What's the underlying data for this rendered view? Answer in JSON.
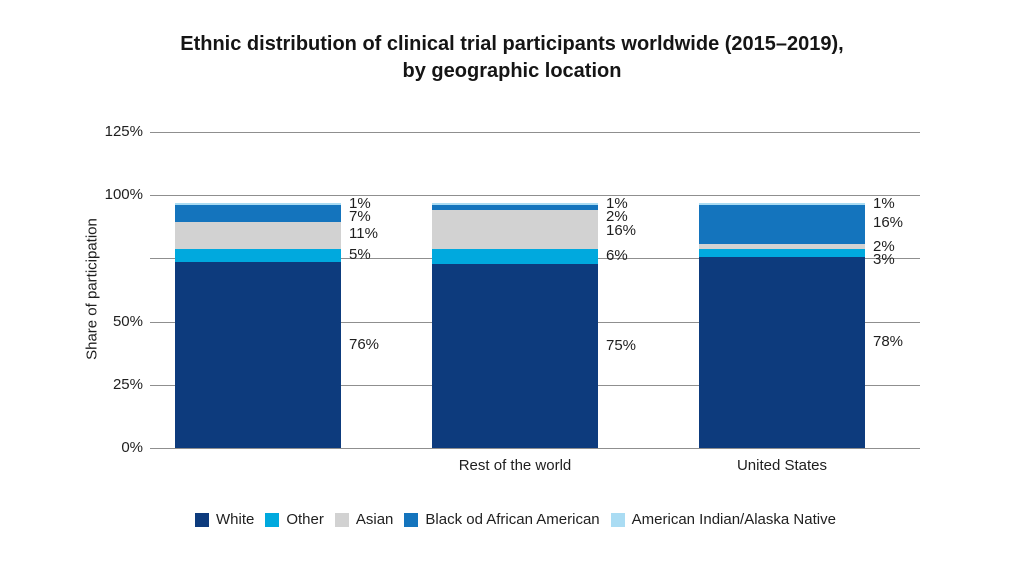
{
  "title": {
    "line1": "Ethnic distribution of clinical trial participants worldwide (2015–2019),",
    "line2": "by geographic location"
  },
  "chart_data": {
    "type": "bar",
    "stacked": true,
    "title": "Ethnic distribution of clinical trial participants worldwide (2015–2019), by geographic location",
    "xlabel": "",
    "ylabel": "Share of participation",
    "ylim": [
      0,
      125
    ],
    "grid": true,
    "legend_position": "bottom",
    "value_suffix": "%",
    "categories": [
      "",
      "Rest of the world",
      "United States"
    ],
    "y_ticks": [
      {
        "value": 0,
        "label": "0%"
      },
      {
        "value": 25,
        "label": "25%"
      },
      {
        "value": 50,
        "label": "50%"
      },
      {
        "value": 75,
        "label": ""
      },
      {
        "value": 100,
        "label": "100%"
      },
      {
        "value": 125,
        "label": "125%"
      }
    ],
    "series": [
      {
        "name": "White",
        "color": "#0d3b7d",
        "values": [
          76,
          75,
          78
        ]
      },
      {
        "name": "Other",
        "color": "#00a9de",
        "values": [
          5,
          6,
          3
        ]
      },
      {
        "name": "Asian",
        "color": "#d2d2d2",
        "values": [
          11,
          16,
          2
        ]
      },
      {
        "name": "Black od African American",
        "color": "#1474bd",
        "values": [
          7,
          2,
          16
        ]
      },
      {
        "name": "American Indian/Alaska Native",
        "color": "#aadcf3",
        "values": [
          1,
          1,
          1
        ]
      }
    ]
  },
  "colors": {
    "gridline": "#8f8f8f",
    "text": "#1f1f1f",
    "title_text": "#151515",
    "background": "#ffffff"
  }
}
